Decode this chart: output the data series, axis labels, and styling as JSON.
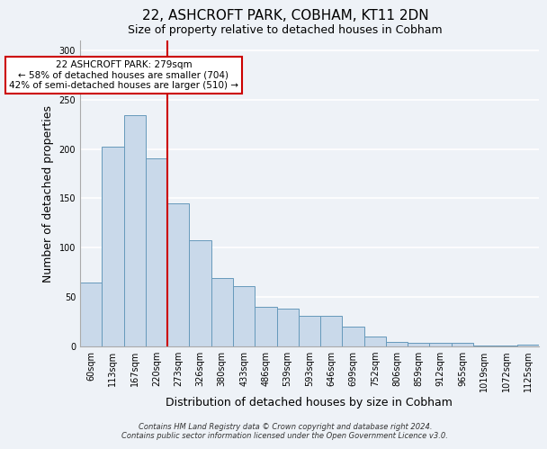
{
  "title": "22, ASHCROFT PARK, COBHAM, KT11 2DN",
  "subtitle": "Size of property relative to detached houses in Cobham",
  "xlabel": "Distribution of detached houses by size in Cobham",
  "ylabel": "Number of detached properties",
  "bar_labels": [
    "60sqm",
    "113sqm",
    "167sqm",
    "220sqm",
    "273sqm",
    "326sqm",
    "380sqm",
    "433sqm",
    "486sqm",
    "539sqm",
    "593sqm",
    "646sqm",
    "699sqm",
    "752sqm",
    "806sqm",
    "859sqm",
    "912sqm",
    "965sqm",
    "1019sqm",
    "1072sqm",
    "1125sqm"
  ],
  "bar_values": [
    65,
    202,
    234,
    191,
    145,
    108,
    69,
    61,
    40,
    38,
    31,
    31,
    20,
    10,
    5,
    4,
    4,
    4,
    1,
    1,
    2
  ],
  "bar_color": "#c9d9ea",
  "bar_edge_color": "#6699bb",
  "vline_color": "#cc0000",
  "annotation_title": "22 ASHCROFT PARK: 279sqm",
  "annotation_line1": "← 58% of detached houses are smaller (704)",
  "annotation_line2": "42% of semi-detached houses are larger (510) →",
  "annotation_box_color": "#ffffff",
  "annotation_box_edge": "#cc0000",
  "footer1": "Contains HM Land Registry data © Crown copyright and database right 2024.",
  "footer2": "Contains public sector information licensed under the Open Government Licence v3.0.",
  "ylim": [
    0,
    310
  ],
  "bg_color": "#eef2f7",
  "grid_color": "#ffffff",
  "title_fontsize": 11,
  "label_fontsize": 9,
  "tick_fontsize": 7,
  "footer_fontsize": 6
}
